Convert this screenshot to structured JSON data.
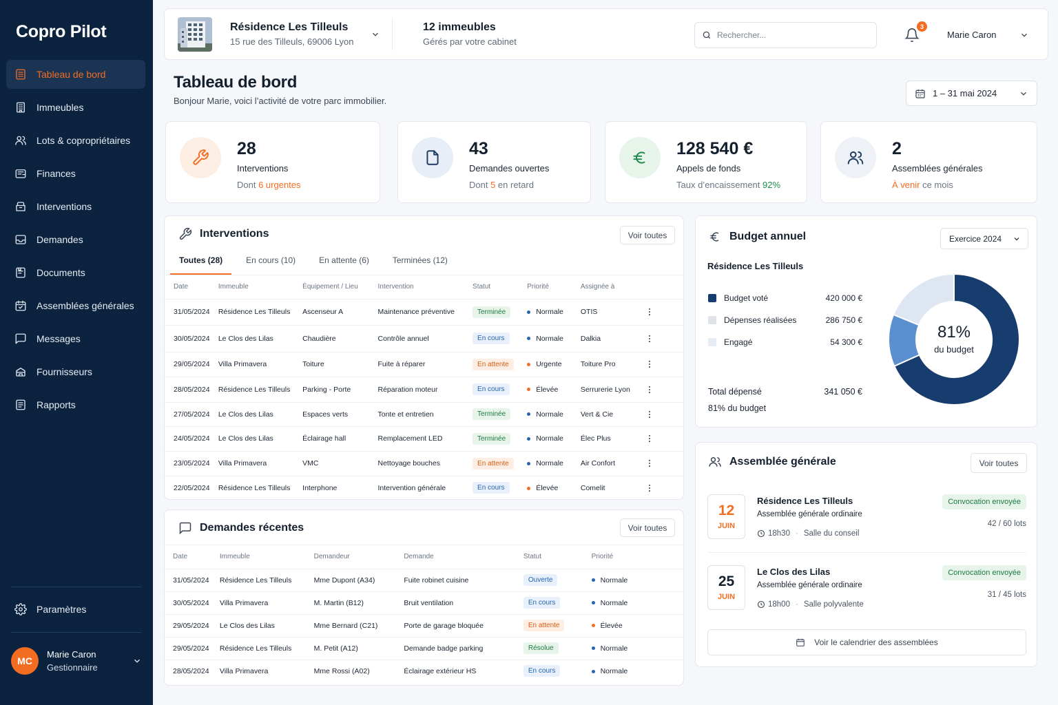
{
  "app": {
    "name": "Copro Pilot"
  },
  "sidebar": {
    "items": [
      {
        "label": "Tableau de bord",
        "icon": "dashboard-icon",
        "active": true
      },
      {
        "label": "Immeubles",
        "icon": "building-icon"
      },
      {
        "label": "Lots & copropriétaires",
        "icon": "users-icon"
      },
      {
        "label": "Finances",
        "icon": "wallet-icon"
      },
      {
        "label": "Interventions",
        "icon": "toolbox-icon"
      },
      {
        "label": "Demandes",
        "icon": "inbox-icon"
      },
      {
        "label": "Documents",
        "icon": "folder-icon"
      },
      {
        "label": "Assemblées générales",
        "icon": "calendar-icon"
      },
      {
        "label": "Messages",
        "icon": "chat-icon"
      },
      {
        "label": "Fournisseurs",
        "icon": "truck-icon"
      },
      {
        "label": "Rapports",
        "icon": "report-icon"
      }
    ],
    "settings_label": "Paramètres",
    "user": {
      "initials": "MC",
      "name": "Marie Caron",
      "role": "Gestionnaire"
    }
  },
  "topbar": {
    "residence_name": "Résidence Les Tilleuls",
    "residence_address": "15 rue des Tilleuls, 69006 Lyon",
    "buildings_count": "12 immeubles",
    "buildings_sub": "Gérés par votre cabinet",
    "search_placeholder": "Rechercher...",
    "notif_count": "3",
    "user_name": "Marie Caron"
  },
  "page": {
    "title": "Tableau de bord",
    "subtitle": "Bonjour Marie, voici l’activité de votre parc immobilier.",
    "date_range": "1 – 31 mai 2024"
  },
  "kpis": [
    {
      "value": "28",
      "label": "Interventions",
      "sub_pre": "Dont ",
      "sub_hl": "6 urgentes",
      "sub_post": "",
      "icon": "wrench-icon",
      "bg": "#fdeee4",
      "fg": "#f26d21"
    },
    {
      "value": "43",
      "label": "Demandes ouvertes",
      "sub_pre": "Dont ",
      "sub_hl": "5",
      "sub_post": " en retard",
      "icon": "document-icon",
      "bg": "#e7eef8",
      "fg": "#1e3a5f"
    },
    {
      "value": "128 540 €",
      "label": "Appels de fonds",
      "sub_pre": "Taux d’encaissement ",
      "sub_hl": "92%",
      "sub_post": "",
      "icon": "euro-icon",
      "bg": "#e6f4ea",
      "fg": "#1f8a4c"
    },
    {
      "value": "2",
      "label": "Assemblées générales",
      "sub_pre": "",
      "sub_hl": "À venir",
      "sub_post": " ce mois",
      "icon": "group-icon",
      "bg": "#eef1f5",
      "fg": "#1e3a5f"
    }
  ],
  "interventions": {
    "title": "Interventions",
    "view_all": "Voir toutes",
    "tabs": [
      "Toutes (28)",
      "En cours (10)",
      "En attente (6)",
      "Terminées (12)"
    ],
    "columns": [
      "Date",
      "Immeuble",
      "Équipement / Lieu",
      "Intervention",
      "Statut",
      "Priorité",
      "Assignée à"
    ],
    "rows": [
      [
        "31/05/2024",
        "Résidence Les Tilleuls",
        "Ascenseur A",
        "Maintenance préventive",
        "Terminée",
        "Normale",
        "OTIS"
      ],
      [
        "30/05/2024",
        "Le Clos des Lilas",
        "Chaudière",
        "Contrôle annuel",
        "En cours",
        "Normale",
        "Dalkia"
      ],
      [
        "29/05/2024",
        "Villa Primavera",
        "Toiture",
        "Fuite à réparer",
        "En attente",
        "Urgente",
        "Toiture Pro"
      ],
      [
        "28/05/2024",
        "Résidence Les Tilleuls",
        "Parking - Porte",
        "Réparation moteur",
        "En cours",
        "Élevée",
        "Serrurerie Lyon"
      ],
      [
        "27/05/2024",
        "Le Clos des Lilas",
        "Espaces verts",
        "Tonte et entretien",
        "Terminée",
        "Normale",
        "Vert & Cie"
      ],
      [
        "24/05/2024",
        "Le Clos des Lilas",
        "Éclairage hall",
        "Remplacement LED",
        "Terminée",
        "Normale",
        "Élec Plus"
      ],
      [
        "23/05/2024",
        "Villa Primavera",
        "VMC",
        "Nettoyage bouches",
        "En attente",
        "Normale",
        "Air Confort"
      ],
      [
        "22/05/2024",
        "Résidence Les Tilleuls",
        "Interphone",
        "Intervention générale",
        "En cours",
        "Élevée",
        "Comelit"
      ]
    ]
  },
  "demandes": {
    "title": "Demandes récentes",
    "view_all": "Voir toutes",
    "columns": [
      "Date",
      "Immeuble",
      "Demandeur",
      "Demande",
      "Statut",
      "Priorité"
    ],
    "rows": [
      [
        "31/05/2024",
        "Résidence Les Tilleuls",
        "Mme Dupont (A34)",
        "Fuite robinet cuisine",
        "Ouverte",
        "Normale"
      ],
      [
        "30/05/2024",
        "Villa Primavera",
        "M. Martin (B12)",
        "Bruit ventilation",
        "En cours",
        "Normale"
      ],
      [
        "29/05/2024",
        "Le Clos des Lilas",
        "Mme Bernard (C21)",
        "Porte de garage bloquée",
        "En attente",
        "Élevée"
      ],
      [
        "29/05/2024",
        "Résidence Les Tilleuls",
        "M. Petit (A12)",
        "Demande badge parking",
        "Résolue",
        "Normale"
      ],
      [
        "28/05/2024",
        "Villa Primavera",
        "Mme Rossi (A02)",
        "Éclairage extérieur HS",
        "En cours",
        "Normale"
      ]
    ]
  },
  "budget": {
    "title": "Budget annuel",
    "exercise": "Exercice 2024",
    "residence": "Résidence Les Tilleuls",
    "legend": [
      {
        "label": "Budget voté",
        "amount": "420 000 €",
        "color": "#173d6e"
      },
      {
        "label": "Dépenses réalisées",
        "amount": "286 750 €",
        "color": "#dfe3e8"
      },
      {
        "label": "Engagé",
        "amount": "54 300 €",
        "color": "#e6ecf5"
      }
    ],
    "total_label": "Total dépensé",
    "total_amount": "341 050 €",
    "total_sub": "81% du budget",
    "donut_value": "81%",
    "donut_label": "du budget",
    "segments": [
      {
        "value": 68.3,
        "color": "#173d6e"
      },
      {
        "value": 12.9,
        "color": "#5b8fd0"
      },
      {
        "value": 18.8,
        "color": "#dde6f1"
      }
    ]
  },
  "ag": {
    "title": "Assemblée générale",
    "view_all": "Voir toutes",
    "items": [
      {
        "day": "12",
        "month": "JUIN",
        "name": "Résidence Les Tilleuls",
        "type": "Assemblée générale ordinaire",
        "time": "18h30",
        "place": "Salle du conseil",
        "status": "Convocation envoyée",
        "lots": "42 / 60 lots",
        "day_color": "#f26d21"
      },
      {
        "day": "25",
        "month": "JUIN",
        "name": "Le Clos des Lilas",
        "type": "Assemblée générale ordinaire",
        "time": "18h00",
        "place": "Salle polyvalente",
        "status": "Convocation envoyée",
        "lots": "31 / 45 lots",
        "day_color": "#15202e"
      }
    ],
    "calendar_btn": "Voir le calendrier des assemblées"
  }
}
